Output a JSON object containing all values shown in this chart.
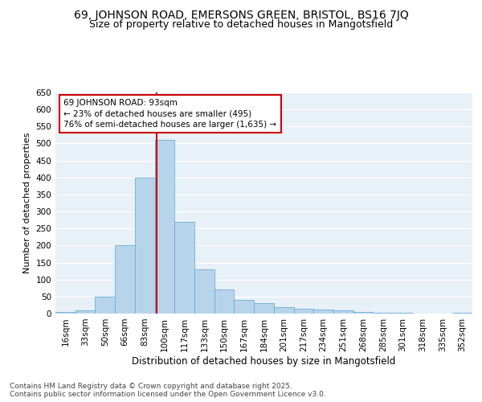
{
  "title1": "69, JOHNSON ROAD, EMERSONS GREEN, BRISTOL, BS16 7JQ",
  "title2": "Size of property relative to detached houses in Mangotsfield",
  "xlabel": "Distribution of detached houses by size in Mangotsfield",
  "ylabel": "Number of detached properties",
  "bins": [
    "16sqm",
    "33sqm",
    "50sqm",
    "66sqm",
    "83sqm",
    "100sqm",
    "117sqm",
    "133sqm",
    "150sqm",
    "167sqm",
    "184sqm",
    "201sqm",
    "217sqm",
    "234sqm",
    "251sqm",
    "268sqm",
    "285sqm",
    "301sqm",
    "318sqm",
    "335sqm",
    "352sqm"
  ],
  "bar_values": [
    5,
    10,
    50,
    200,
    400,
    510,
    270,
    130,
    70,
    40,
    30,
    20,
    15,
    12,
    10,
    5,
    2,
    3,
    0,
    0,
    2
  ],
  "bar_color": "#b8d4ea",
  "bar_edge_color": "#6aaed6",
  "vline_color": "#cc0000",
  "annotation_text": "69 JOHNSON ROAD: 93sqm\n← 23% of detached houses are smaller (495)\n76% of semi-detached houses are larger (1,635) →",
  "annotation_box_color": "#ffffff",
  "annotation_box_edge": "#cc0000",
  "ylim": [
    0,
    650
  ],
  "yticks": [
    0,
    50,
    100,
    150,
    200,
    250,
    300,
    350,
    400,
    450,
    500,
    550,
    600,
    650
  ],
  "background_color": "#e8f0f8",
  "grid_color": "#ffffff",
  "footer_line1": "Contains HM Land Registry data © Crown copyright and database right 2025.",
  "footer_line2": "Contains public sector information licensed under the Open Government Licence v3.0.",
  "title1_fontsize": 10,
  "title2_fontsize": 9,
  "xlabel_fontsize": 8.5,
  "ylabel_fontsize": 8,
  "tick_fontsize": 7.5,
  "annotation_fontsize": 7.5,
  "footer_fontsize": 6.5
}
